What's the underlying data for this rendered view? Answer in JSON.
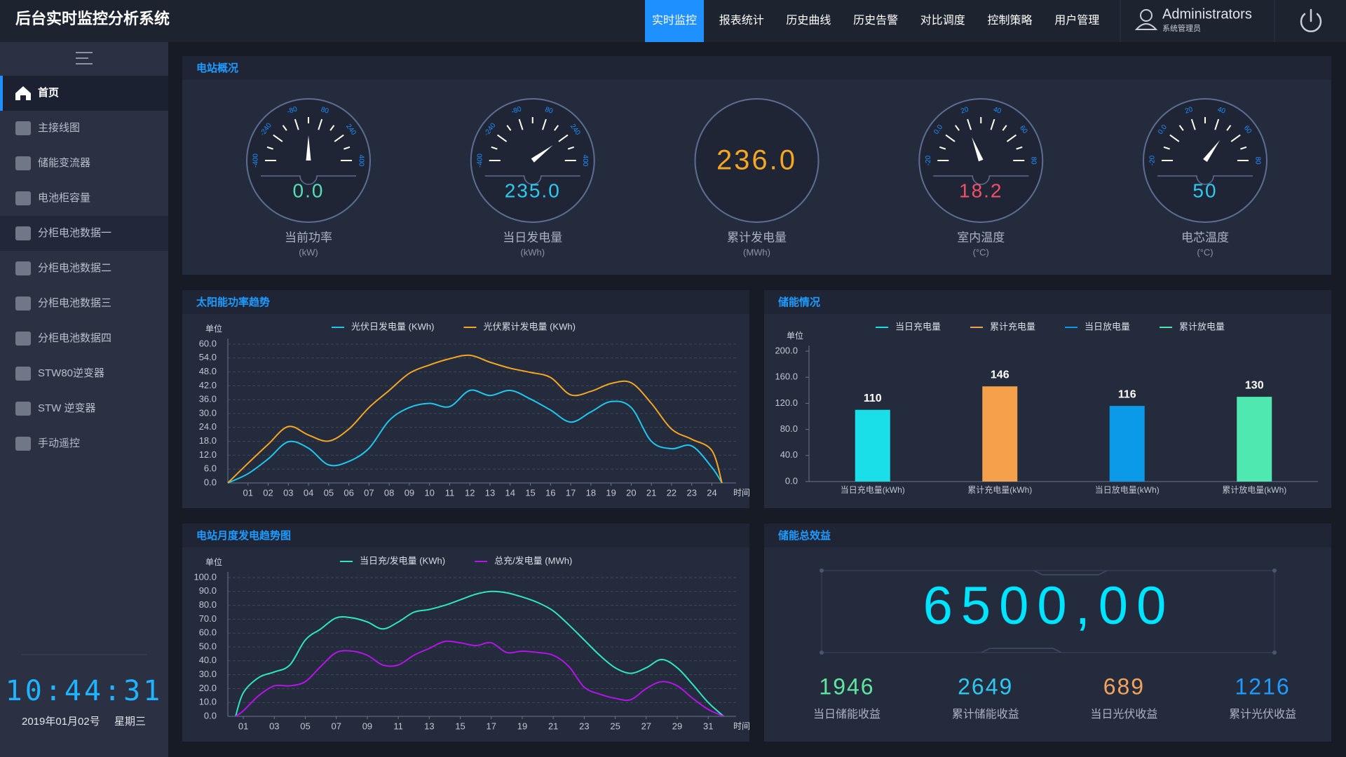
{
  "header": {
    "title": "后台实时监控分析系统",
    "nav": [
      "实时监控",
      "报表统计",
      "历史曲线",
      "历史告警",
      "对比调度",
      "控制策略",
      "用户管理"
    ],
    "nav_active": 0,
    "user": "Administrators",
    "role": "系统管理员"
  },
  "sidebar": {
    "items": [
      "首页",
      "主接线图",
      "储能变流器",
      "电池柜容量",
      "分柜电池数据一",
      "分柜电池数据二",
      "分柜电池数据三",
      "分柜电池数据四",
      "STW80逆变器",
      "STW 逆变器",
      "手动遥控"
    ],
    "active": 0,
    "highlight": 4,
    "clock": "10:44:31",
    "date": "2019年01月02号",
    "weekday": "星期三"
  },
  "station": {
    "title": "电站概况",
    "gauges": [
      {
        "label": "当前功率",
        "unit": "(kW)",
        "value": 0,
        "value_label": "0.0",
        "color": "#4fe0b5",
        "range": [
          -400,
          400
        ],
        "scale": [
          -400,
          -240,
          -80,
          80,
          240,
          400
        ]
      },
      {
        "label": "当日发电量",
        "unit": "(kWh)",
        "value": 235,
        "value_label": "235.0",
        "color": "#2ec9f0",
        "range": [
          -400,
          400
        ],
        "scale": [
          -400,
          -240,
          -80,
          80,
          240,
          400
        ]
      },
      {
        "label": "累计发电量",
        "unit": "(MWh)",
        "value_label": "236.0",
        "color": "#f5a623"
      },
      {
        "label": "室内温度",
        "unit": "(°C)",
        "value": 18.2,
        "color": "#f0506a",
        "range": [
          -20,
          80
        ],
        "scale": [
          -20,
          {
            "value": 0,
            "label": "0.0"
          },
          20,
          40,
          60,
          80
        ]
      },
      {
        "label": "电芯温度",
        "unit": "(°C)",
        "value": 50,
        "color": "#2ec9f0",
        "range": [
          -20,
          80
        ],
        "scale": [
          -20,
          {
            "value": 0,
            "label": "0.0"
          },
          20,
          40,
          60,
          80
        ]
      }
    ]
  },
  "chart_data": [
    {
      "type": "line",
      "title": "太阳能功率趋势",
      "y_label": "单位",
      "x_label": "时间",
      "x": [
        0,
        1,
        2,
        3,
        4,
        5,
        6,
        7,
        8,
        9,
        10,
        11,
        12,
        13,
        14,
        15,
        16,
        17,
        18,
        19,
        20,
        21,
        22,
        23,
        24,
        24.5
      ],
      "xlim": [
        0,
        25.2
      ],
      "xticks": [
        {
          "value": 1,
          "label": "01"
        },
        {
          "value": 2,
          "label": "02"
        },
        {
          "value": 3,
          "label": "03"
        },
        {
          "value": 4,
          "label": "04"
        },
        {
          "value": 5,
          "label": "05"
        },
        {
          "value": 6,
          "label": "06"
        },
        {
          "value": 7,
          "label": "07"
        },
        {
          "value": 8,
          "label": "08"
        },
        {
          "value": 9,
          "label": "09"
        },
        10,
        11,
        12,
        13,
        14,
        15,
        16,
        17,
        18,
        19,
        20,
        21,
        22,
        23,
        24
      ],
      "ylim": [
        0,
        60
      ],
      "yticks": [
        {
          "value": 0,
          "label": "0.0"
        },
        {
          "value": 6,
          "label": "6.0"
        },
        {
          "value": 12,
          "label": "12.0"
        },
        {
          "value": 18,
          "label": "18.0"
        },
        {
          "value": 24,
          "label": "24.0"
        },
        {
          "value": 30,
          "label": "30.0"
        },
        {
          "value": 36,
          "label": "36.0"
        },
        {
          "value": 42,
          "label": "42.0"
        },
        {
          "value": 48,
          "label": "48.0"
        },
        {
          "value": 54,
          "label": "54.0"
        },
        {
          "value": 60,
          "label": "60.0"
        }
      ],
      "grid": true,
      "series": [
        {
          "name": "光伏日发电量 (KWh)",
          "color": "#1ec8f0",
          "values": [
            0,
            4,
            10.4,
            17.8,
            15,
            7.8,
            9.3,
            15,
            27,
            32.6,
            34.4,
            33,
            40,
            37.8,
            40,
            36.3,
            31.5,
            26.3,
            30.7,
            35.2,
            32.6,
            18,
            14.8,
            16,
            6.7,
            0
          ]
        },
        {
          "name": "光伏累计发电量 (KWh)",
          "color": "#f5a623",
          "values": [
            0,
            8.5,
            16.7,
            24.4,
            20.7,
            18.1,
            23.3,
            32.6,
            40,
            47.4,
            51,
            53.7,
            55.2,
            52.2,
            49.6,
            47.8,
            45.6,
            38.1,
            39.6,
            43,
            43.3,
            34.4,
            23.3,
            18.9,
            14,
            0
          ]
        }
      ]
    },
    {
      "type": "bar",
      "title": "储能情况",
      "y_label": "单位",
      "categories": [
        "当日充电量(kWh)",
        "累计充电量(kWh)",
        "当日放电量(kWh)",
        "累计放电量(kWh)"
      ],
      "values": [
        110,
        146,
        116,
        130
      ],
      "colors": [
        "#1adfe8",
        "#f5a04a",
        "#0a9ae8",
        "#4fe8b0"
      ],
      "legend": [
        "当日充电量",
        "累计充电量",
        "当日放电量",
        "累计放电量"
      ],
      "ylim": [
        0,
        200
      ],
      "yticks": [
        {
          "value": 0,
          "label": "0.0"
        },
        {
          "value": 40,
          "label": "40.0"
        },
        {
          "value": 80,
          "label": "80.0"
        },
        {
          "value": 120,
          "label": "120.0"
        },
        {
          "value": 160,
          "label": "160.0"
        },
        {
          "value": 200,
          "label": "200.0"
        }
      ]
    },
    {
      "type": "line",
      "title": "电站月度发电趋势图",
      "y_label": "单位",
      "x_label": "时间",
      "x": [
        0.5,
        1,
        2,
        3,
        4,
        5,
        6,
        7,
        8,
        9,
        10,
        11,
        12,
        13,
        14,
        15,
        16,
        17,
        18,
        19,
        20,
        21,
        22,
        23,
        24,
        25,
        26,
        27,
        28,
        29,
        30,
        31,
        32
      ],
      "xlim": [
        0,
        32.8
      ],
      "xticks": [
        {
          "value": 1,
          "label": "01"
        },
        {
          "value": 3,
          "label": "03"
        },
        {
          "value": 5,
          "label": "05"
        },
        {
          "value": 7,
          "label": "07"
        },
        {
          "value": 9,
          "label": "09"
        },
        11,
        13,
        15,
        17,
        19,
        21,
        23,
        25,
        27,
        29,
        31
      ],
      "ylim": [
        0,
        100
      ],
      "yticks": [
        {
          "value": 0,
          "label": "0.0"
        },
        {
          "value": 10,
          "label": "10.0"
        },
        {
          "value": 20,
          "label": "20.0"
        },
        {
          "value": 30,
          "label": "30.0"
        },
        {
          "value": 40,
          "label": "40.0"
        },
        {
          "value": 50,
          "label": "50.0"
        },
        {
          "value": 60,
          "label": "60.0"
        },
        {
          "value": 70,
          "label": "70.0"
        },
        {
          "value": 80,
          "label": "80.0"
        },
        {
          "value": 90,
          "label": "90.0"
        },
        {
          "value": 100,
          "label": "100.0"
        }
      ],
      "grid": true,
      "series": [
        {
          "name": "当日充/发电量 (KWh)",
          "color": "#2ee6c0",
          "values": [
            0,
            17,
            28,
            32,
            37,
            55,
            63,
            71,
            71,
            68,
            63,
            68,
            75,
            77,
            80,
            84,
            88,
            90,
            89,
            86,
            82,
            76,
            66,
            55,
            44,
            35,
            31,
            35,
            41,
            35,
            23,
            10,
            0
          ]
        },
        {
          "name": "总充/发电量 (MWh)",
          "color": "#b414e8",
          "values": [
            0,
            4,
            15,
            22,
            22,
            25,
            36,
            46,
            47,
            44,
            37,
            37,
            44,
            49,
            54,
            53,
            51,
            53,
            46,
            47,
            46,
            44,
            36,
            21,
            16,
            13,
            12,
            20,
            25,
            22,
            13,
            5,
            0
          ]
        }
      ]
    }
  ],
  "revenue": {
    "title": "储能总效益",
    "total": "6500,00",
    "items": [
      {
        "value": 1946,
        "label": "当日储能收益",
        "color": "#5fe6a0"
      },
      {
        "value": 2649,
        "label": "累计储能收益",
        "color": "#2ec9f0"
      },
      {
        "value": 689,
        "label": "当日光伏收益",
        "color": "#f5a35a"
      },
      {
        "value": 1216,
        "label": "累计光伏收益",
        "color": "#1e9bff"
      }
    ]
  }
}
